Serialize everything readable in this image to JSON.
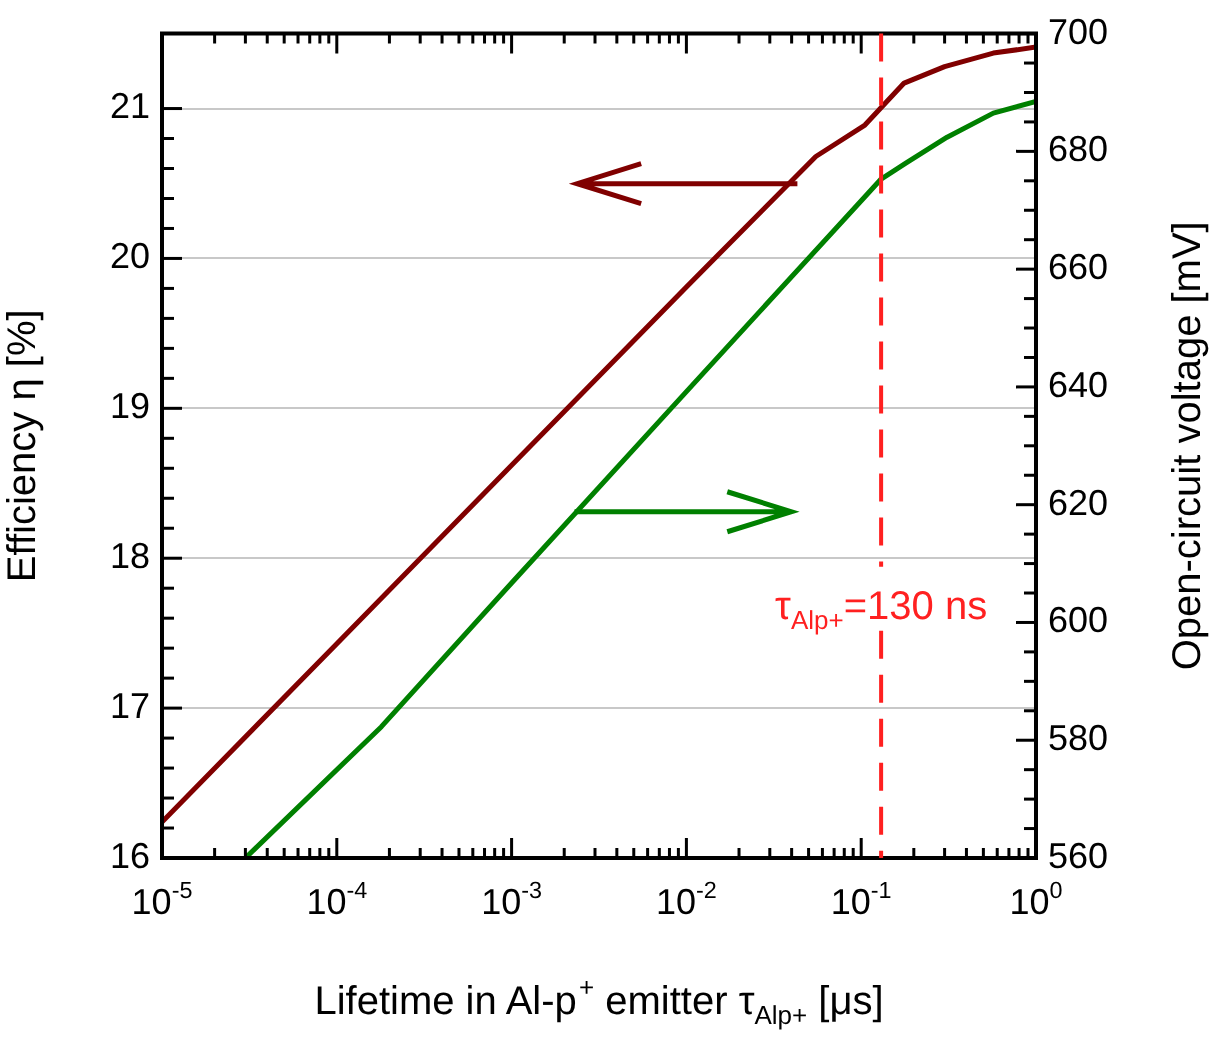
{
  "chart_data": {
    "type": "line",
    "xlabel": "Lifetime in Al-p$^{+}$ emitter τ$_{Alp+}$ [μs]",
    "ylabel": "Efficiency η [%]",
    "y2label": "Open-circuit voltage [mV]",
    "log": "x",
    "grid": "y",
    "legend": false,
    "marker": "none",
    "line_style": "solid",
    "xlim": [
      1e-05,
      1
    ],
    "xticks": [
      {
        "value": 1e-05,
        "label": "10$^{-5}$"
      },
      {
        "value": 0.0001,
        "label": "10$^{-4}$"
      },
      {
        "value": 0.001,
        "label": "10$^{-3}$"
      },
      {
        "value": 0.01,
        "label": "10$^{-2}$"
      },
      {
        "value": 0.1,
        "label": "10$^{-1}$"
      },
      {
        "value": 1,
        "label": "10$^{0}$"
      }
    ],
    "ylim": [
      16,
      21.5
    ],
    "yticks": [
      16,
      17,
      18,
      19,
      20,
      21
    ],
    "y2lim": [
      560,
      700
    ],
    "y2ticks": [
      560,
      580,
      600,
      620,
      640,
      660,
      680,
      700
    ],
    "series": [
      {
        "color": "#800000",
        "x": [
          1e-05,
          0.0001,
          0.001,
          0.01,
          0.055,
          0.105,
          0.176,
          0.3,
          0.57,
          1
        ],
        "values": [
          16.24,
          17.43,
          18.62,
          19.81,
          20.68,
          20.89,
          21.17,
          21.28,
          21.37,
          21.41
        ]
      },
      {
        "color": "#008000",
        "axis": "y2",
        "x": [
          3e-05,
          0.00018,
          0.001,
          0.01,
          0.105,
          0.13,
          0.18,
          0.31,
          0.57,
          1
        ],
        "values": [
          560,
          582.3,
          606.7,
          639.2,
          672.3,
          675.3,
          678,
          682.4,
          686.5,
          688.5
        ]
      }
    ],
    "ref_lines": [
      {
        "axis": "x",
        "value": 0.13,
        "label": "τ$_{Alp+}$=130 ns",
        "color": "#ff2020",
        "line_style": "dashed"
      }
    ]
  }
}
